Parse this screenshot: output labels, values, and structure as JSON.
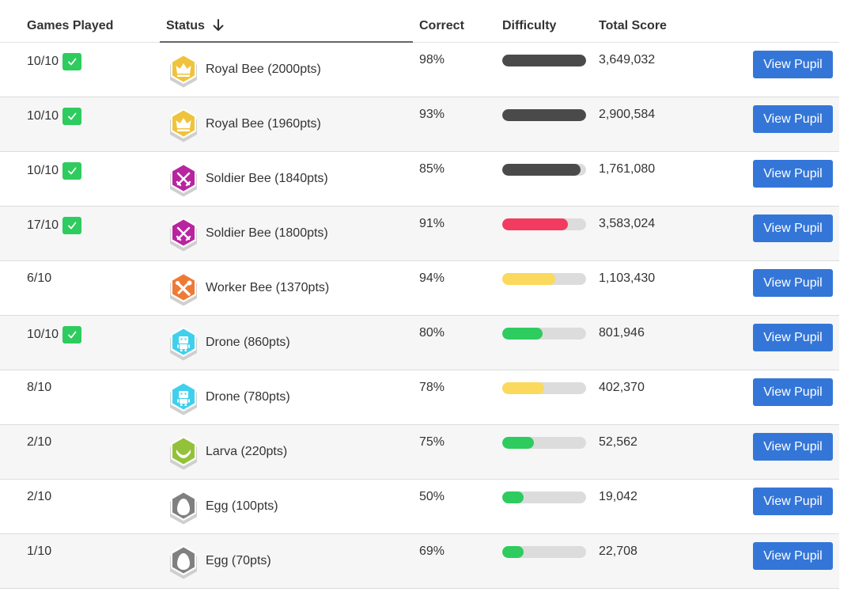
{
  "headers": {
    "games_played": "Games Played",
    "status": "Status",
    "correct": "Correct",
    "difficulty": "Difficulty",
    "total_score": "Total Score"
  },
  "button_label": "View Pupil",
  "colors": {
    "bar_dark": "#4a4a4a",
    "bar_red": "#f23b5f",
    "bar_yellow": "#fbd95d",
    "bar_green": "#2ecc5e",
    "bar_track": "#dcdcdc",
    "button": "#3476d8",
    "check": "#2ecc5e"
  },
  "rows": [
    {
      "games": "10/10",
      "complete": true,
      "badge": "crown-icon",
      "badge_color": "#f0c33c",
      "status": "Royal Bee (2000pts)",
      "correct": "98%",
      "difficulty": 1.0,
      "difficulty_color": "#4a4a4a",
      "score": "3,649,032"
    },
    {
      "games": "10/10",
      "complete": true,
      "badge": "crown-icon",
      "badge_color": "#f0c33c",
      "status": "Royal Bee (1960pts)",
      "correct": "93%",
      "difficulty": 1.0,
      "difficulty_color": "#4a4a4a",
      "score": "2,900,584"
    },
    {
      "games": "10/10",
      "complete": true,
      "badge": "crossed-swords-icon",
      "badge_color": "#b8259f",
      "status": "Soldier Bee (1840pts)",
      "correct": "85%",
      "difficulty": 0.93,
      "difficulty_color": "#4a4a4a",
      "score": "1,761,080"
    },
    {
      "games": "17/10",
      "complete": true,
      "badge": "crossed-swords-icon",
      "badge_color": "#b8259f",
      "status": "Soldier Bee (1800pts)",
      "correct": "91%",
      "difficulty": 0.78,
      "difficulty_color": "#f23b5f",
      "score": "3,583,024"
    },
    {
      "games": "6/10",
      "complete": false,
      "badge": "tools-icon",
      "badge_color": "#ef7a35",
      "status": "Worker Bee (1370pts)",
      "correct": "94%",
      "difficulty": 0.63,
      "difficulty_color": "#fbd95d",
      "score": "1,103,430"
    },
    {
      "games": "10/10",
      "complete": true,
      "badge": "robot-icon",
      "badge_color": "#3fd0ec",
      "status": "Drone (860pts)",
      "correct": "80%",
      "difficulty": 0.48,
      "difficulty_color": "#2ecc5e",
      "score": "801,946"
    },
    {
      "games": "8/10",
      "complete": false,
      "badge": "robot-icon",
      "badge_color": "#3fd0ec",
      "status": "Drone (780pts)",
      "correct": "78%",
      "difficulty": 0.5,
      "difficulty_color": "#fbd95d",
      "score": "402,370"
    },
    {
      "games": "2/10",
      "complete": false,
      "badge": "larva-icon",
      "badge_color": "#93c23a",
      "status": "Larva (220pts)",
      "correct": "75%",
      "difficulty": 0.38,
      "difficulty_color": "#2ecc5e",
      "score": "52,562"
    },
    {
      "games": "2/10",
      "complete": false,
      "badge": "egg-icon",
      "badge_color": "#808080",
      "status": "Egg (100pts)",
      "correct": "50%",
      "difficulty": 0.25,
      "difficulty_color": "#2ecc5e",
      "score": "19,042"
    },
    {
      "games": "1/10",
      "complete": false,
      "badge": "egg-icon",
      "badge_color": "#808080",
      "status": "Egg (70pts)",
      "correct": "69%",
      "difficulty": 0.25,
      "difficulty_color": "#2ecc5e",
      "score": "22,708"
    }
  ]
}
